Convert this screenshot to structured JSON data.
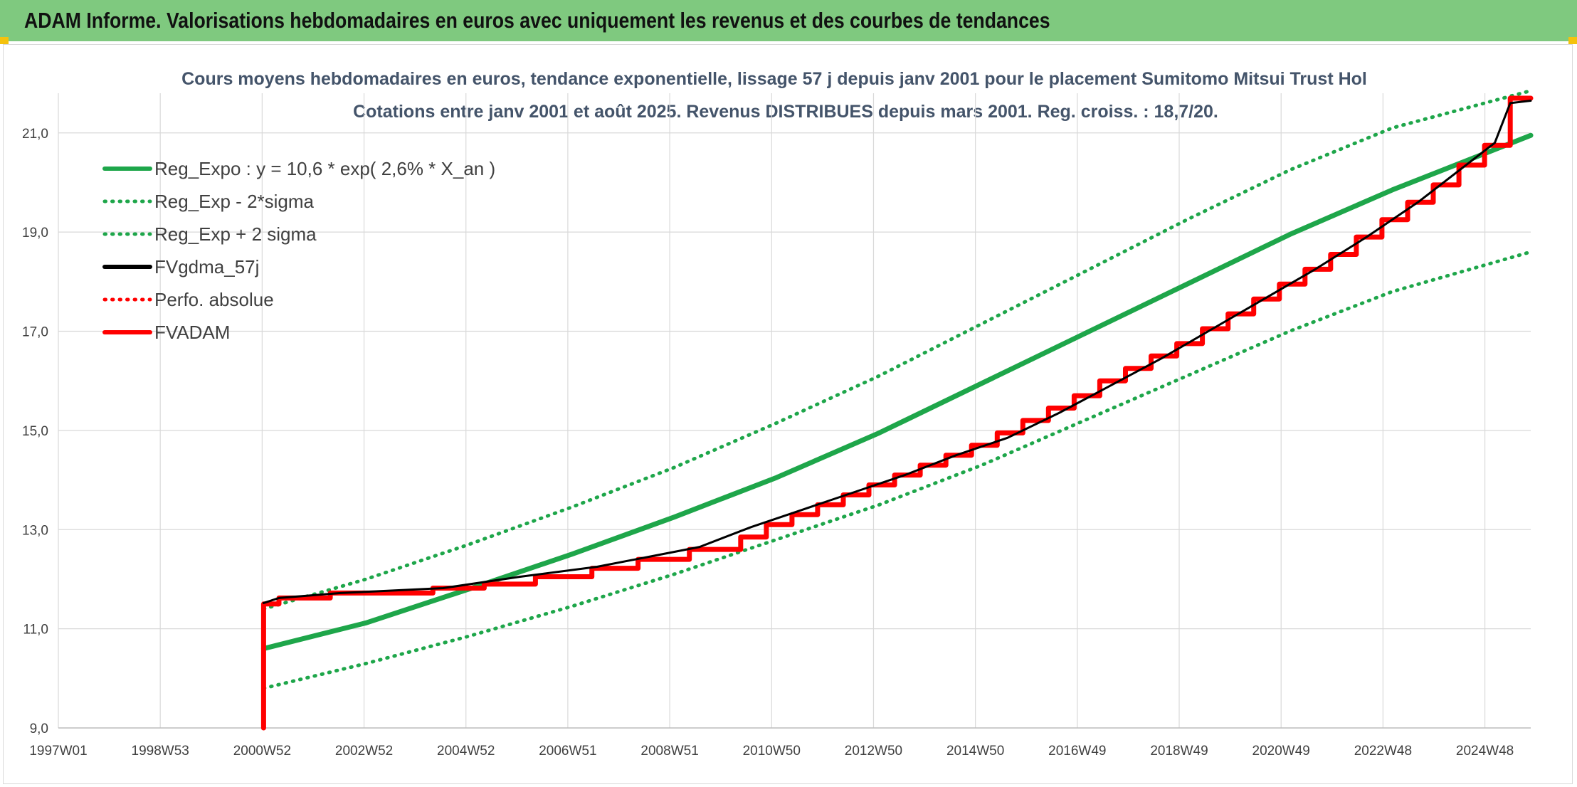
{
  "header": {
    "title": "ADAM Informe. Valorisations hebdomadaires en euros avec uniquement les revenus et des courbes de tendances"
  },
  "chart_data": {
    "type": "line",
    "title": "Cours moyens hebdomadaires en euros, tendance exponentielle, lissage 57 j depuis janv 2001 pour le placement Sumitomo Mitsui Trust Hol",
    "subtitle": "Cotations entre janv 2001 et août 2025. Revenus DISTRIBUES depuis mars 2001. Reg. croiss. : 18,7/20.",
    "xlabel": "",
    "ylabel": "",
    "x_ticks": [
      "1997W01",
      "1998W53",
      "2000W52",
      "2002W52",
      "2004W52",
      "2006W51",
      "2008W51",
      "2010W50",
      "2012W50",
      "2014W50",
      "2016W49",
      "2018W49",
      "2020W49",
      "2022W48",
      "2024W48"
    ],
    "x_range": [
      1997.0,
      2025.7
    ],
    "y_ticks": [
      "9,0",
      "11,0",
      "13,0",
      "15,0",
      "17,0",
      "19,0",
      "21,0"
    ],
    "ylim": [
      9.0,
      21.8
    ],
    "grid": true,
    "legend_position": "top-left",
    "series": [
      {
        "name": "Reg_Expo : y = 10,6 * exp( 2,6% *  X_an )",
        "color": "#1ea64a",
        "style": "solid",
        "points": [
          [
            2001.0,
            10.6
          ],
          [
            2003.0,
            11.12
          ],
          [
            2005.0,
            11.8
          ],
          [
            2007.0,
            12.5
          ],
          [
            2009.0,
            13.25
          ],
          [
            2011.0,
            14.05
          ],
          [
            2013.0,
            14.95
          ],
          [
            2015.0,
            15.95
          ],
          [
            2017.0,
            16.95
          ],
          [
            2019.0,
            17.95
          ],
          [
            2021.0,
            18.95
          ],
          [
            2023.0,
            19.85
          ],
          [
            2025.7,
            20.95
          ]
        ]
      },
      {
        "name": "Reg_Exp - 2*sigma",
        "color": "#1ea64a",
        "style": "dotted",
        "points": [
          [
            2001.0,
            9.8
          ],
          [
            2003.0,
            10.3
          ],
          [
            2005.0,
            10.85
          ],
          [
            2007.0,
            11.45
          ],
          [
            2009.0,
            12.1
          ],
          [
            2011.0,
            12.8
          ],
          [
            2013.0,
            13.5
          ],
          [
            2015.0,
            14.3
          ],
          [
            2017.0,
            15.2
          ],
          [
            2019.0,
            16.1
          ],
          [
            2021.0,
            17.0
          ],
          [
            2023.0,
            17.8
          ],
          [
            2025.7,
            18.6
          ]
        ]
      },
      {
        "name": "Reg_Exp + 2 sigma",
        "color": "#1ea64a",
        "style": "dotted",
        "points": [
          [
            2001.0,
            11.4
          ],
          [
            2003.0,
            12.0
          ],
          [
            2005.0,
            12.7
          ],
          [
            2007.0,
            13.45
          ],
          [
            2009.0,
            14.25
          ],
          [
            2011.0,
            15.15
          ],
          [
            2013.0,
            16.1
          ],
          [
            2015.0,
            17.15
          ],
          [
            2017.0,
            18.2
          ],
          [
            2019.0,
            19.25
          ],
          [
            2021.0,
            20.25
          ],
          [
            2023.0,
            21.1
          ],
          [
            2025.7,
            21.85
          ]
        ]
      },
      {
        "name": "FVgdma_57j",
        "color": "#000000",
        "style": "solid",
        "points": [
          [
            2001.0,
            11.52
          ],
          [
            2001.3,
            11.62
          ],
          [
            2002.5,
            11.72
          ],
          [
            2004.5,
            11.82
          ],
          [
            2006.0,
            12.05
          ],
          [
            2007.5,
            12.25
          ],
          [
            2008.5,
            12.45
          ],
          [
            2009.5,
            12.65
          ],
          [
            2010.5,
            13.05
          ],
          [
            2011.5,
            13.4
          ],
          [
            2012.5,
            13.75
          ],
          [
            2013.5,
            14.1
          ],
          [
            2014.5,
            14.5
          ],
          [
            2015.5,
            14.85
          ],
          [
            2016.5,
            15.35
          ],
          [
            2017.5,
            15.9
          ],
          [
            2018.5,
            16.45
          ],
          [
            2019.5,
            17.05
          ],
          [
            2020.5,
            17.65
          ],
          [
            2021.5,
            18.25
          ],
          [
            2022.5,
            18.9
          ],
          [
            2023.5,
            19.6
          ],
          [
            2024.5,
            20.4
          ],
          [
            2025.0,
            20.8
          ],
          [
            2025.3,
            21.6
          ],
          [
            2025.7,
            21.65
          ]
        ]
      },
      {
        "name": "Perfo. absolue",
        "color": "#ff0000",
        "style": "dotted",
        "points": []
      },
      {
        "name": "FVADAM",
        "color": "#ff0000",
        "style": "step",
        "points": [
          [
            2001.0,
            9.0
          ],
          [
            2001.0,
            11.5
          ],
          [
            2001.3,
            11.5
          ],
          [
            2001.3,
            11.62
          ],
          [
            2002.3,
            11.62
          ],
          [
            2002.3,
            11.72
          ],
          [
            2004.3,
            11.72
          ],
          [
            2004.3,
            11.82
          ],
          [
            2005.3,
            11.82
          ],
          [
            2005.3,
            11.9
          ],
          [
            2006.3,
            11.9
          ],
          [
            2006.3,
            12.05
          ],
          [
            2007.4,
            12.05
          ],
          [
            2007.4,
            12.22
          ],
          [
            2008.3,
            12.22
          ],
          [
            2008.3,
            12.4
          ],
          [
            2009.3,
            12.4
          ],
          [
            2009.3,
            12.6
          ],
          [
            2010.3,
            12.6
          ],
          [
            2010.3,
            12.85
          ],
          [
            2010.8,
            12.85
          ],
          [
            2010.8,
            13.1
          ],
          [
            2011.3,
            13.1
          ],
          [
            2011.3,
            13.3
          ],
          [
            2011.8,
            13.3
          ],
          [
            2011.8,
            13.5
          ],
          [
            2012.3,
            13.5
          ],
          [
            2012.3,
            13.7
          ],
          [
            2012.8,
            13.7
          ],
          [
            2012.8,
            13.9
          ],
          [
            2013.3,
            13.9
          ],
          [
            2013.3,
            14.1
          ],
          [
            2013.8,
            14.1
          ],
          [
            2013.8,
            14.3
          ],
          [
            2014.3,
            14.3
          ],
          [
            2014.3,
            14.5
          ],
          [
            2014.8,
            14.5
          ],
          [
            2014.8,
            14.7
          ],
          [
            2015.3,
            14.7
          ],
          [
            2015.3,
            14.95
          ],
          [
            2015.8,
            14.95
          ],
          [
            2015.8,
            15.2
          ],
          [
            2016.3,
            15.2
          ],
          [
            2016.3,
            15.45
          ],
          [
            2016.8,
            15.45
          ],
          [
            2016.8,
            15.7
          ],
          [
            2017.3,
            15.7
          ],
          [
            2017.3,
            16.0
          ],
          [
            2017.8,
            16.0
          ],
          [
            2017.8,
            16.25
          ],
          [
            2018.3,
            16.25
          ],
          [
            2018.3,
            16.5
          ],
          [
            2018.8,
            16.5
          ],
          [
            2018.8,
            16.75
          ],
          [
            2019.3,
            16.75
          ],
          [
            2019.3,
            17.05
          ],
          [
            2019.8,
            17.05
          ],
          [
            2019.8,
            17.35
          ],
          [
            2020.3,
            17.35
          ],
          [
            2020.3,
            17.65
          ],
          [
            2020.8,
            17.65
          ],
          [
            2020.8,
            17.95
          ],
          [
            2021.3,
            17.95
          ],
          [
            2021.3,
            18.25
          ],
          [
            2021.8,
            18.25
          ],
          [
            2021.8,
            18.55
          ],
          [
            2022.3,
            18.55
          ],
          [
            2022.3,
            18.9
          ],
          [
            2022.8,
            18.9
          ],
          [
            2022.8,
            19.25
          ],
          [
            2023.3,
            19.25
          ],
          [
            2023.3,
            19.6
          ],
          [
            2023.8,
            19.6
          ],
          [
            2023.8,
            19.95
          ],
          [
            2024.3,
            19.95
          ],
          [
            2024.3,
            20.35
          ],
          [
            2024.8,
            20.35
          ],
          [
            2024.8,
            20.75
          ],
          [
            2025.3,
            20.75
          ],
          [
            2025.3,
            21.7
          ],
          [
            2025.7,
            21.7
          ]
        ]
      }
    ]
  }
}
